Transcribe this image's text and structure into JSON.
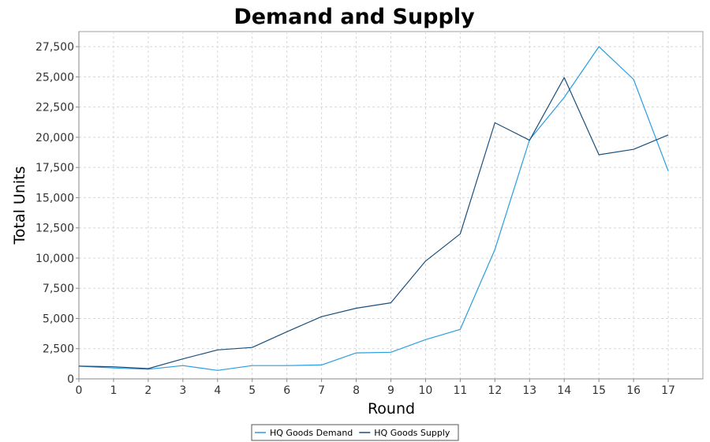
{
  "chart_data": {
    "type": "line",
    "title": "Demand and Supply",
    "xlabel": "Round",
    "ylabel": "Total Units",
    "x": [
      0,
      1,
      2,
      3,
      4,
      5,
      6,
      7,
      8,
      9,
      10,
      11,
      12,
      13,
      14,
      15,
      16,
      17
    ],
    "xlim": [
      0,
      18
    ],
    "ylim": [
      0,
      28750
    ],
    "yticks": [
      0,
      2500,
      5000,
      7500,
      10000,
      12500,
      15000,
      17500,
      20000,
      22500,
      25000,
      27500
    ],
    "ytick_labels": [
      "0",
      "2,500",
      "5,000",
      "7,500",
      "10,000",
      "12,500",
      "15,000",
      "17,500",
      "20,000",
      "22,500",
      "25,000",
      "27,500"
    ],
    "grid": true,
    "legend_position": "bottom",
    "series": [
      {
        "name": "HQ Goods Demand",
        "color": "#2a9de0",
        "values": [
          1050,
          900,
          800,
          1100,
          700,
          1100,
          1100,
          1150,
          2150,
          2200,
          3250,
          4100,
          10700,
          19800,
          23300,
          27500,
          24800,
          17200
        ]
      },
      {
        "name": "HQ Goods Supply",
        "color": "#1b4f7a",
        "values": [
          1050,
          1000,
          850,
          1650,
          2400,
          2600,
          3900,
          5150,
          5850,
          6300,
          9750,
          12000,
          21200,
          19750,
          24950,
          18550,
          19000,
          20200
        ]
      }
    ]
  }
}
